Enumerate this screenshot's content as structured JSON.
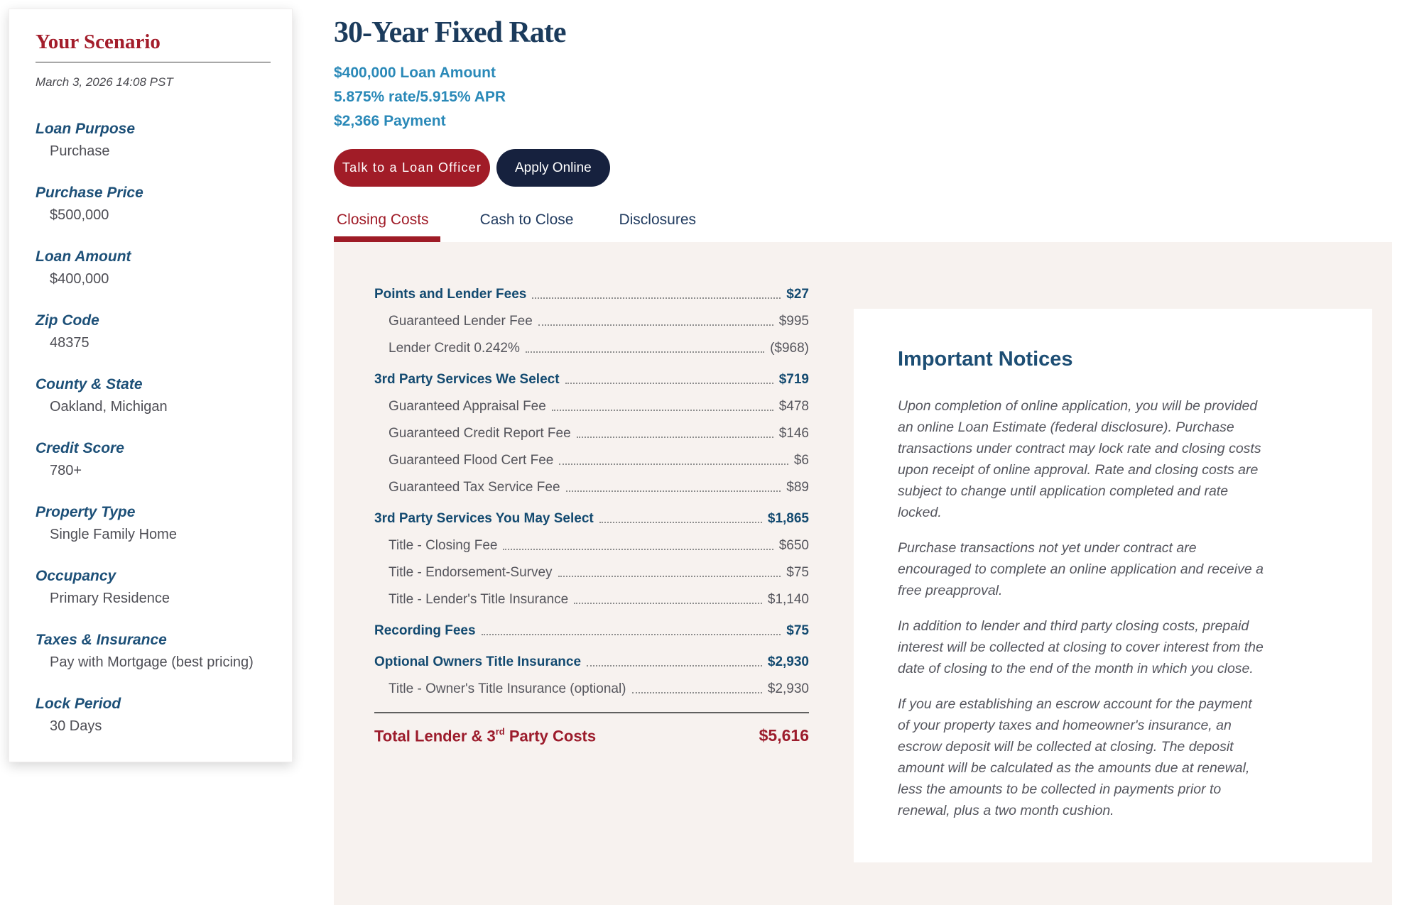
{
  "colors": {
    "accent_red": "#A11C27",
    "accent_navy": "#16213E",
    "heading_navy": "#1B3B5C",
    "link_teal": "#2A89B8",
    "panel_beige": "#F7F2EF"
  },
  "sidebar": {
    "title": "Your Scenario",
    "timestamp": "March 3, 2026 14:08 PST",
    "items": [
      {
        "label": "Loan Purpose",
        "value": "Purchase"
      },
      {
        "label": "Purchase Price",
        "value": "$500,000"
      },
      {
        "label": "Loan Amount",
        "value": "$400,000"
      },
      {
        "label": "Zip Code",
        "value": "48375"
      },
      {
        "label": "County & State",
        "value": "Oakland, Michigan"
      },
      {
        "label": "Credit Score",
        "value": "780+"
      },
      {
        "label": "Property Type",
        "value": "Single Family Home"
      },
      {
        "label": "Occupancy",
        "value": "Primary Residence"
      },
      {
        "label": "Taxes & Insurance",
        "value": "Pay with Mortgage (best pricing)"
      },
      {
        "label": "Lock Period",
        "value": "30 Days"
      }
    ]
  },
  "header": {
    "title": "30-Year Fixed Rate",
    "loan_amount": "$400,000 Loan Amount",
    "rate_apr": "5.875% rate/5.915% APR",
    "payment": "$2,366 Payment",
    "talk_button": "Talk to a Loan Officer",
    "apply_button": "Apply Online"
  },
  "tabs": [
    {
      "label": "Closing Costs"
    },
    {
      "label": "Cash to Close"
    },
    {
      "label": "Disclosures"
    }
  ],
  "closing_costs": {
    "rows": [
      {
        "label": "Points and Lender Fees",
        "value": "$27"
      },
      {
        "label": "Guaranteed Lender Fee",
        "value": "$995"
      },
      {
        "label": "Lender Credit 0.242%",
        "value": "($968)"
      },
      {
        "label": "3rd Party Services We Select",
        "value": "$719"
      },
      {
        "label": "Guaranteed Appraisal Fee",
        "value": "$478"
      },
      {
        "label": "Guaranteed Credit Report Fee",
        "value": "$146"
      },
      {
        "label": "Guaranteed Flood Cert Fee",
        "value": "$6"
      },
      {
        "label": "Guaranteed Tax Service Fee",
        "value": "$89"
      },
      {
        "label": "3rd Party Services You May Select",
        "value": "$1,865"
      },
      {
        "label": "Title - Closing Fee",
        "value": "$650"
      },
      {
        "label": "Title - Endorsement-Survey",
        "value": "$75"
      },
      {
        "label": "Title - Lender's Title Insurance",
        "value": "$1,140"
      },
      {
        "label": "Recording Fees",
        "value": "$75"
      },
      {
        "label": "Optional Owners Title Insurance",
        "value": "$2,930"
      },
      {
        "label": "Title - Owner's Title Insurance (optional)",
        "value": "$2,930"
      }
    ],
    "total_prefix": "Total Lender & 3",
    "total_sup": "rd",
    "total_suffix": " Party Costs",
    "total_value": "$5,616"
  },
  "notices": {
    "title": "Important Notices",
    "paragraphs": [
      "Upon completion of online application, you will be provided an online Loan Estimate (federal disclosure). Purchase transactions under contract may lock rate and closing costs upon receipt of online approval. Rate and closing costs are subject to change until application completed and rate locked.",
      "Purchase transactions not yet under contract are encouraged to complete an online application and receive a free preapproval.",
      "In addition to lender and third party closing costs, prepaid interest will be collected at closing to cover interest from the date of closing to the end of the month in which you close.",
      "If you are establishing an escrow account for the payment of your property taxes and homeowner's insurance, an escrow deposit will be collected at closing. The deposit amount will be calculated as the amounts due at renewal, less the amounts to be collected in payments prior to renewal, plus a two month cushion."
    ]
  }
}
